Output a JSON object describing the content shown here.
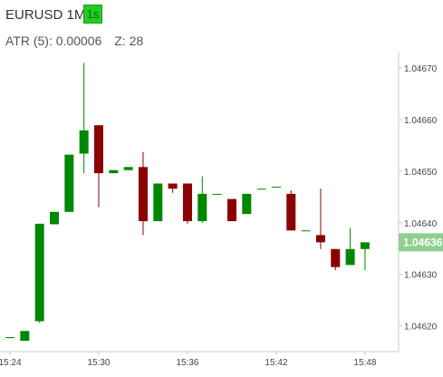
{
  "header": {
    "symbol": "EURUSD 1M",
    "timeframe": "1s",
    "indicator_name": "ATR (5):",
    "indicator_value": "0.00006",
    "z_label": "Z:",
    "z_value": "28"
  },
  "colors": {
    "bull": "#008800",
    "bear": "#8b0000",
    "last_price_bg": "#8fcf8f",
    "axis": "#c8c8c8"
  },
  "chart_data": {
    "type": "candlestick",
    "title": "EURUSD 1M",
    "price_ticks": [
      "1.04670",
      "1.04660",
      "1.04650",
      "1.04640",
      "1.04630",
      "1.04620"
    ],
    "price_tick_values": [
      1.0467,
      1.0466,
      1.0465,
      1.0464,
      1.0463,
      1.0462
    ],
    "time_ticks": [
      "15:24",
      "15:30",
      "15:36",
      "15:42",
      "15:48"
    ],
    "time_tick_index": [
      0,
      6,
      12,
      18,
      24
    ],
    "ylim": [
      1.04615,
      1.04673
    ],
    "last_price_label": "1.04636",
    "last_price": 1.046362,
    "candles": [
      {
        "o": 1.046177,
        "h": 1.046178,
        "l": 1.046176,
        "c": 1.046178
      },
      {
        "o": 1.046171,
        "h": 1.04619,
        "l": 1.046171,
        "c": 1.04619
      },
      {
        "o": 1.046209,
        "h": 1.046398,
        "l": 1.046206,
        "c": 1.046398
      },
      {
        "o": 1.046397,
        "h": 1.046421,
        "l": 1.046397,
        "c": 1.046421
      },
      {
        "o": 1.046421,
        "h": 1.046532,
        "l": 1.046421,
        "c": 1.046532
      },
      {
        "o": 1.046534,
        "h": 1.04671,
        "l": 1.046496,
        "c": 1.046579
      },
      {
        "o": 1.046589,
        "h": 1.046589,
        "l": 1.04643,
        "c": 1.046496
      },
      {
        "o": 1.046496,
        "h": 1.046502,
        "l": 1.046496,
        "c": 1.046502
      },
      {
        "o": 1.046502,
        "h": 1.046508,
        "l": 1.046502,
        "c": 1.046508
      },
      {
        "o": 1.046508,
        "h": 1.046537,
        "l": 1.046376,
        "c": 1.046403
      },
      {
        "o": 1.046403,
        "h": 1.046476,
        "l": 1.046403,
        "c": 1.046476
      },
      {
        "o": 1.046476,
        "h": 1.046476,
        "l": 1.046458,
        "c": 1.046466
      },
      {
        "o": 1.046476,
        "h": 1.046476,
        "l": 1.046398,
        "c": 1.046403
      },
      {
        "o": 1.046403,
        "h": 1.04649,
        "l": 1.0464,
        "c": 1.046456
      },
      {
        "o": 1.046456,
        "h": 1.046456,
        "l": 1.046456,
        "c": 1.046456
      },
      {
        "o": 1.046446,
        "h": 1.046446,
        "l": 1.046403,
        "c": 1.046403
      },
      {
        "o": 1.046417,
        "h": 1.046456,
        "l": 1.046417,
        "c": 1.046456
      },
      {
        "o": 1.046466,
        "h": 1.046466,
        "l": 1.046466,
        "c": 1.046466
      },
      {
        "o": 1.04647,
        "h": 1.04647,
        "l": 1.04647,
        "c": 1.04647
      },
      {
        "o": 1.046456,
        "h": 1.046463,
        "l": 1.046385,
        "c": 1.046385
      },
      {
        "o": 1.046385,
        "h": 1.046385,
        "l": 1.046385,
        "c": 1.046385
      },
      {
        "o": 1.046376,
        "h": 1.046466,
        "l": 1.046349,
        "c": 1.046362
      },
      {
        "o": 1.046349,
        "h": 1.046349,
        "l": 1.046308,
        "c": 1.046314
      },
      {
        "o": 1.046318,
        "h": 1.04639,
        "l": 1.046318,
        "c": 1.046349
      },
      {
        "o": 1.046349,
        "h": 1.046362,
        "l": 1.046308,
        "c": 1.046362
      }
    ]
  }
}
